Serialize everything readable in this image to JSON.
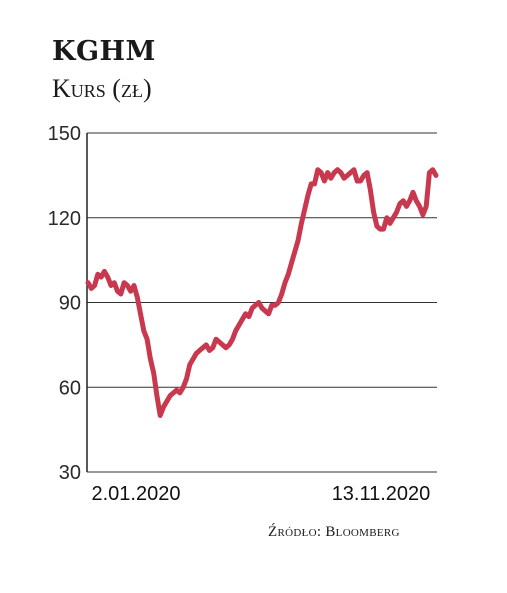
{
  "header": {
    "title": "KGHM",
    "subtitle": "Kurs (zł)"
  },
  "source": "Źródło: Bloomberg",
  "chart_data": {
    "type": "line",
    "title": "KGHM",
    "subtitle": "Kurs (zł)",
    "xlabel": "",
    "ylabel": "Kurs (zł)",
    "ylim": [
      30,
      150
    ],
    "yticks": [
      "150",
      "120",
      "90",
      "60",
      "30"
    ],
    "xtick_labels": [
      "2.01.2020",
      "13.11.2020"
    ],
    "grid": "horizontal",
    "line_color": "#c8394f",
    "series": [
      {
        "values": [
          97,
          95,
          96,
          100,
          99,
          101,
          99,
          96,
          97,
          94,
          93,
          97,
          96,
          94,
          96,
          92,
          86,
          80,
          77,
          70,
          65,
          57,
          50,
          53,
          55,
          57,
          58,
          59,
          58,
          60,
          63,
          68,
          70,
          72,
          73,
          74,
          75,
          73,
          74,
          77,
          76,
          75,
          74,
          75,
          77,
          80,
          82,
          84,
          86,
          85,
          88,
          89,
          90,
          88,
          87,
          86,
          89,
          89,
          90,
          93,
          97,
          100,
          104,
          108,
          112,
          118,
          123,
          128,
          132,
          132,
          137,
          136,
          133,
          136,
          134,
          136,
          137,
          136,
          134,
          135,
          136,
          137,
          133,
          133,
          135,
          136,
          130,
          122,
          117,
          116,
          116,
          120,
          118,
          120,
          122,
          125,
          126,
          124,
          126,
          129,
          126,
          124,
          121,
          124,
          136,
          137,
          135
        ]
      }
    ]
  }
}
